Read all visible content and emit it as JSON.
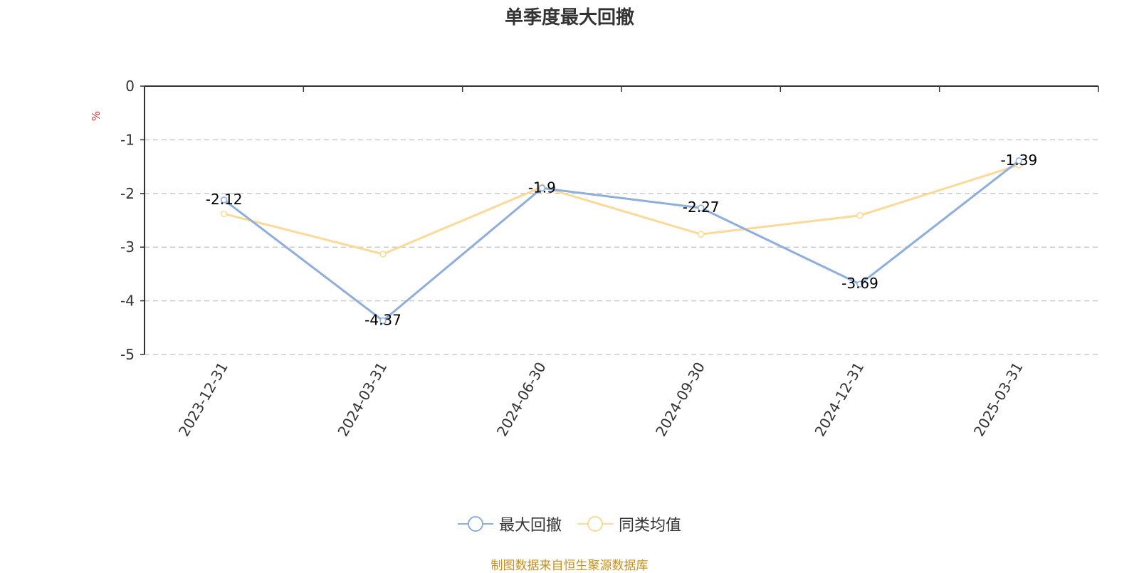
{
  "title": "单季度最大回撤",
  "source_note": "制图数据来自恒生聚源数据库",
  "colors": {
    "series_1": "#8eaedb",
    "series_2": "#fbd997",
    "axis": "#333333",
    "grid": "#cccccc",
    "unit": "#e03030",
    "source": "#c8901c"
  },
  "chart_data": {
    "type": "line",
    "title": "单季度最大回撤",
    "xlabel": "",
    "ylabel": "%",
    "categories": [
      "2023-12-31",
      "2024-03-31",
      "2024-06-30",
      "2024-09-30",
      "2024-12-31",
      "2025-03-31"
    ],
    "series": [
      {
        "name": "最大回撤",
        "values": [
          -2.12,
          -4.37,
          -1.9,
          -2.27,
          -3.69,
          -1.39
        ],
        "data_labels": [
          "-2.12",
          "-4.37",
          "-1.9",
          "-2.27",
          "-3.69",
          "-1.39"
        ]
      },
      {
        "name": "同类均值",
        "values": [
          -2.38,
          -3.13,
          -1.88,
          -2.76,
          -2.41,
          -1.47
        ]
      }
    ],
    "ylim": [
      -5,
      0
    ],
    "yticks": [
      0,
      -1,
      -2,
      -3,
      -4,
      -5
    ],
    "grid": true,
    "legend_position": "bottom-center"
  }
}
